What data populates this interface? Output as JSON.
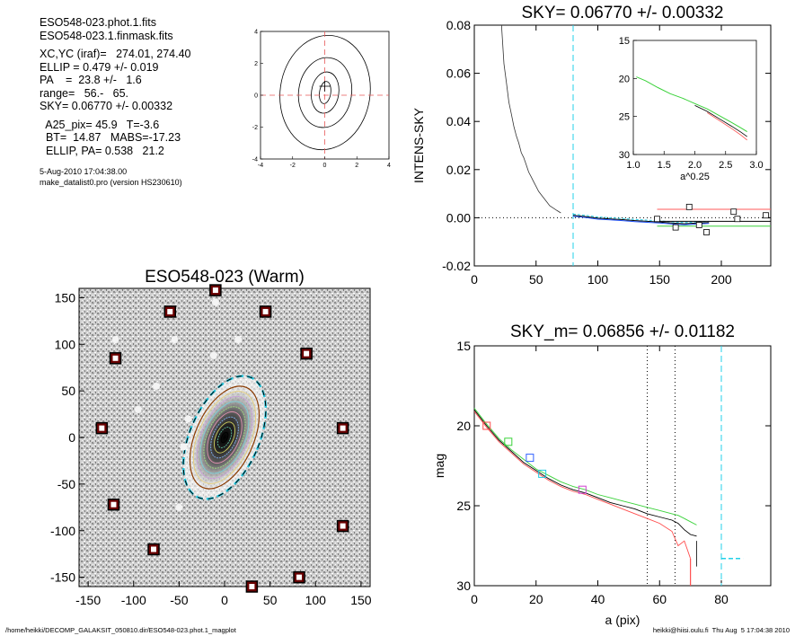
{
  "header": {
    "lines": [
      "ESO548-023.phot.1.fits",
      "ESO548-023.1.finmask.fits",
      "",
      "XC,YC (iraf)=   274.01, 274.40",
      "ELLIP = 0.479 +/- 0.019",
      "PA    =  23.8 +/-   1.6",
      "range=   56.-   65.",
      "SKY= 0.06770 +/- 0.00332",
      "",
      "  A25_pix= 45.9   T=-3.6",
      "  BT=  14.87   MABS=-17.23",
      "  ELLIP, PA= 0.538   21.2"
    ],
    "date": "5-Aug-2010 17:04:38.00",
    "program": "make_datalist0.pro (version HS230610)"
  },
  "footer": {
    "left": "/home/heikki/DECOMP_GALAKSIT_050810.dir/ESO548-023.phot.1_magplot",
    "right": "heikki@hiisi.oulu.fi  Thu Aug  5 17:04:38 2010"
  },
  "chart_data": [
    {
      "id": "contour",
      "type": "contour",
      "xlim": [
        -4,
        4
      ],
      "ylim": [
        -4,
        4
      ],
      "xticks": [
        "-4",
        "-2",
        "0",
        "2",
        "4"
      ],
      "yticks": [
        "-4",
        "-2",
        "0",
        "2",
        "4"
      ],
      "crosshair_color": "#e85a5a",
      "levels": [
        {
          "rx": 2.8,
          "ry": 3.6
        },
        {
          "rx": 1.65,
          "ry": 2.2
        },
        {
          "rx": 0.85,
          "ry": 1.3
        },
        {
          "rx": 0.35,
          "ry": 0.7
        }
      ]
    },
    {
      "id": "intens_sky",
      "type": "line",
      "title": "SKY= 0.06770 +/- 0.00332",
      "ylabel": "INTENS-SKY",
      "xlim": [
        0,
        240
      ],
      "ylim": [
        -0.02,
        0.08
      ],
      "xticks": [
        0,
        50,
        100,
        150,
        200
      ],
      "yticks": [
        "-0.02",
        "0.00",
        "0.02",
        "0.04",
        "0.06",
        "0.08"
      ],
      "profile": {
        "x": [
          22,
          24,
          26,
          28,
          30,
          32,
          34,
          36,
          38,
          40,
          42,
          44,
          46,
          48,
          50,
          52,
          55,
          58,
          61,
          64,
          67,
          70
        ],
        "y": [
          0.082,
          0.064,
          0.056,
          0.048,
          0.043,
          0.038,
          0.034,
          0.031,
          0.027,
          0.025,
          0.022,
          0.019,
          0.017,
          0.015,
          0.013,
          0.011,
          0.009,
          0.007,
          0.005,
          0.004,
          0.003,
          0.002
        ]
      },
      "outer": {
        "x": [
          80,
          90,
          100,
          110,
          120,
          130,
          140,
          150,
          160,
          170,
          180,
          190
        ],
        "y": [
          0.001,
          0.0005,
          -0.0002,
          -0.0005,
          -0.0008,
          -0.0012,
          -0.0015,
          -0.0018,
          -0.0022,
          -0.0025,
          -0.0022,
          -0.002
        ]
      },
      "squares": {
        "x": [
          148,
          163,
          174,
          182,
          188,
          210,
          213,
          236
        ],
        "y": [
          -0.0005,
          -0.004,
          0.0045,
          -0.003,
          -0.006,
          0.0025,
          -0.0005,
          0.001
        ]
      },
      "hlines": [
        {
          "y": 0.0035,
          "x0": 148,
          "x1": 240,
          "color": "#ff5a5a"
        },
        {
          "y": -0.0015,
          "x0": 148,
          "x1": 240,
          "color": "#000000"
        },
        {
          "y": -0.0035,
          "x0": 148,
          "x1": 240,
          "color": "#3ad23a"
        }
      ],
      "sky_line_x": 80,
      "inset": {
        "xlabel": "a^0.25",
        "xlim": [
          1.0,
          3.0
        ],
        "ylim": [
          15,
          30
        ],
        "xticks": [
          "1.0",
          "1.5",
          "2.0",
          "2.5",
          "3.0"
        ],
        "yticks": [
          "15",
          "20",
          "25",
          "30"
        ],
        "x": [
          1.05,
          1.2,
          1.4,
          1.6,
          1.8,
          2.0,
          2.2,
          2.4,
          2.6,
          2.75,
          2.85
        ],
        "y": [
          19.8,
          20.3,
          21.2,
          22.0,
          22.6,
          23.3,
          24.0,
          24.9,
          25.8,
          26.5,
          27.0
        ]
      }
    },
    {
      "id": "image",
      "type": "image",
      "title": "ESO548-023 (Warm)",
      "xlim": [
        -160,
        160
      ],
      "ylim": [
        -160,
        160
      ],
      "xticks": [
        -150,
        -100,
        -50,
        0,
        50,
        100,
        150
      ],
      "yticks": [
        -150,
        -100,
        -50,
        0,
        50,
        100,
        150
      ],
      "ellipse_pa": 23.8,
      "ellipse_inner": {
        "a": 60,
        "b": 32
      },
      "ellipse_outer": {
        "a": 72,
        "b": 38
      },
      "markers": [
        {
          "x": -60,
          "y": 135
        },
        {
          "x": 45,
          "y": 135
        },
        {
          "x": -120,
          "y": 85
        },
        {
          "x": 90,
          "y": 90
        },
        {
          "x": -135,
          "y": 10
        },
        {
          "x": 130,
          "y": 10
        },
        {
          "x": -122,
          "y": -72
        },
        {
          "x": 130,
          "y": -95
        },
        {
          "x": -78,
          "y": -120
        },
        {
          "x": 82,
          "y": -150
        },
        {
          "x": -10,
          "y": 158
        },
        {
          "x": 30,
          "y": -160
        }
      ]
    },
    {
      "id": "mag",
      "type": "line",
      "title": "SKY_m=  0.06856 +/- 0.01182",
      "xlabel": "a (pix)",
      "ylabel": "mag",
      "xlim": [
        0,
        96
      ],
      "ylim": [
        30,
        15
      ],
      "xticks": [
        0,
        20,
        40,
        60,
        80
      ],
      "yticks": [
        15,
        20,
        25,
        30
      ],
      "series": [
        {
          "color": "#000000",
          "x": [
            0,
            4,
            8,
            12,
            16,
            20,
            24,
            28,
            32,
            36,
            40,
            44,
            48,
            52,
            56,
            60,
            64,
            66,
            68,
            70,
            72
          ],
          "y": [
            19.0,
            20.0,
            20.9,
            21.6,
            22.3,
            22.8,
            23.3,
            23.7,
            24.0,
            24.2,
            24.5,
            24.8,
            25.0,
            25.2,
            25.5,
            25.7,
            25.9,
            26.1,
            26.5,
            26.8,
            26.9
          ]
        },
        {
          "color": "#3ad23a",
          "x": [
            0,
            4,
            8,
            12,
            16,
            20,
            24,
            28,
            32,
            36,
            40,
            44,
            48,
            52,
            56,
            60,
            64,
            66,
            68,
            70,
            72
          ],
          "y": [
            18.9,
            19.9,
            20.8,
            21.5,
            22.1,
            22.7,
            23.1,
            23.5,
            23.8,
            24.0,
            24.3,
            24.5,
            24.7,
            24.9,
            25.1,
            25.3,
            25.5,
            25.6,
            25.8,
            26.0,
            26.2
          ]
        },
        {
          "color": "#ff4d4d",
          "x": [
            0,
            4,
            8,
            12,
            16,
            20,
            24,
            28,
            32,
            36,
            40,
            44,
            48,
            52,
            56,
            60,
            64,
            66,
            68,
            70
          ],
          "y": [
            19.1,
            20.1,
            21.0,
            21.7,
            22.4,
            22.9,
            23.4,
            23.8,
            24.1,
            24.3,
            24.6,
            24.9,
            25.2,
            25.5,
            25.8,
            26.1,
            26.6,
            27.5,
            27.2,
            28.3
          ]
        }
      ],
      "squares": [
        {
          "x": 4,
          "y": 20.0,
          "color": "#ff4d4d"
        },
        {
          "x": 11,
          "y": 21.0,
          "color": "#3ad23a"
        },
        {
          "x": 18,
          "y": 22.0,
          "color": "#3060ff"
        },
        {
          "x": 22,
          "y": 23.0,
          "color": "#22c8e0"
        },
        {
          "x": 35,
          "y": 24.0,
          "color": "#d040d0"
        }
      ],
      "vlines_dotted": [
        56,
        65
      ],
      "sky_line_x": 80,
      "sky_mag": 28.3
    }
  ]
}
